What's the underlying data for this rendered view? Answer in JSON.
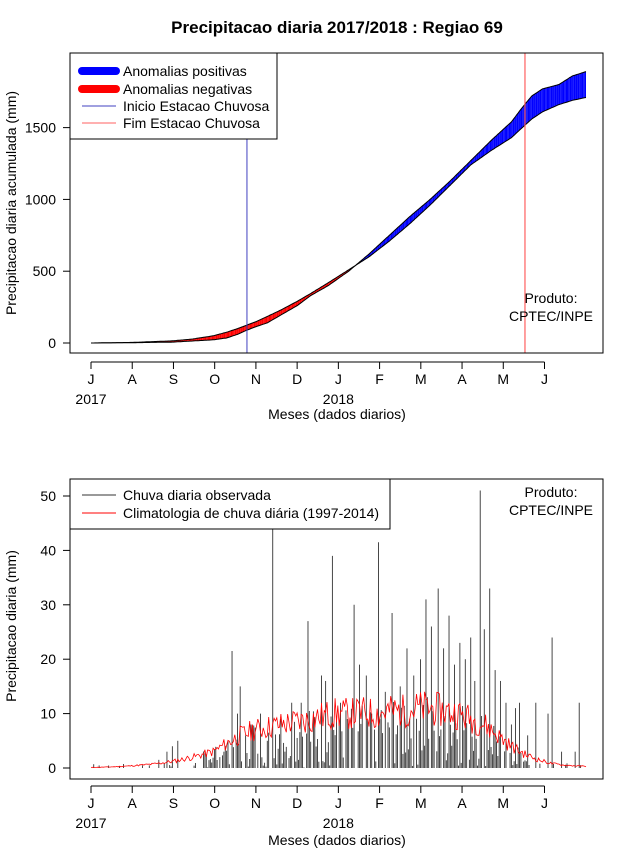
{
  "figure": {
    "title": "Precipitacao diaria 2017/2018 : Regiao 69",
    "colors": {
      "positive": "#0000ff",
      "negative": "#ff0000",
      "start": "#4040c0",
      "end": "#ff6060",
      "observed": "#333333",
      "climatology": "#ff0000"
    }
  },
  "chart_data": [
    {
      "type": "area",
      "title": "Precipitacao diaria 2017/2018 : Regiao 69",
      "xlabel": "Meses (dados diarios)",
      "ylabel": "Precipitacao diaria acumulada (mm)",
      "ylim": [
        0,
        1950
      ],
      "yticks": [
        0,
        500,
        1000,
        1500
      ],
      "x_months": [
        "J",
        "A",
        "S",
        "O",
        "N",
        "D",
        "J",
        "F",
        "M",
        "A",
        "M",
        "J"
      ],
      "x_years": [
        {
          "label": "2017",
          "month_index": 0
        },
        {
          "label": "2018",
          "month_index": 6
        }
      ],
      "day_range": [
        0,
        365
      ],
      "legend": [
        "Anomalias positivas",
        "Anomalias negativas",
        "Inicio Estacao Chuvosa",
        "Fim Estacao Chuvosa"
      ],
      "legend_position": "top-left",
      "note": [
        "Produto:",
        "CPTEC/INPE"
      ],
      "series": [
        {
          "name": "observed_accumulated",
          "points": [
            [
              0,
              0
            ],
            [
              30,
              2
            ],
            [
              60,
              6
            ],
            [
              75,
              14
            ],
            [
              90,
              22
            ],
            [
              100,
              35
            ],
            [
              108,
              60
            ],
            [
              115,
              90
            ],
            [
              122,
              115
            ],
            [
              130,
              140
            ],
            [
              140,
              195
            ],
            [
              152,
              260
            ],
            [
              162,
              330
            ],
            [
              175,
              400
            ],
            [
              190,
              500
            ],
            [
              205,
              620
            ],
            [
              220,
              750
            ],
            [
              235,
              880
            ],
            [
              250,
              1000
            ],
            [
              265,
              1130
            ],
            [
              280,
              1270
            ],
            [
              295,
              1410
            ],
            [
              310,
              1540
            ],
            [
              318,
              1640
            ],
            [
              325,
              1720
            ],
            [
              333,
              1770
            ],
            [
              345,
              1800
            ],
            [
              355,
              1860
            ],
            [
              365,
              1890
            ]
          ]
        },
        {
          "name": "climatology_accumulated",
          "points": [
            [
              0,
              0
            ],
            [
              30,
              4
            ],
            [
              60,
              15
            ],
            [
              75,
              28
            ],
            [
              90,
              50
            ],
            [
              100,
              75
            ],
            [
              108,
              100
            ],
            [
              115,
              125
            ],
            [
              122,
              150
            ],
            [
              130,
              185
            ],
            [
              140,
              230
            ],
            [
              152,
              290
            ],
            [
              162,
              345
            ],
            [
              175,
              420
            ],
            [
              190,
              510
            ],
            [
              205,
              600
            ],
            [
              220,
              710
            ],
            [
              235,
              830
            ],
            [
              250,
              960
            ],
            [
              265,
              1100
            ],
            [
              280,
              1240
            ],
            [
              295,
              1340
            ],
            [
              310,
              1430
            ],
            [
              318,
              1500
            ],
            [
              325,
              1560
            ],
            [
              333,
              1610
            ],
            [
              345,
              1660
            ],
            [
              355,
              1690
            ],
            [
              365,
              1710
            ]
          ]
        }
      ],
      "events": [
        {
          "name": "Inicio Estacao Chuvosa",
          "day": 115
        },
        {
          "name": "Fim Estacao Chuvosa",
          "day": 320
        }
      ]
    },
    {
      "type": "bar",
      "xlabel": "Meses (dados diarios)",
      "ylabel": "Precipitacao diaria (mm)",
      "ylim": [
        0,
        53
      ],
      "yticks": [
        0,
        10,
        20,
        30,
        40,
        50
      ],
      "x_months": [
        "J",
        "A",
        "S",
        "O",
        "N",
        "D",
        "J",
        "F",
        "M",
        "A",
        "M",
        "J"
      ],
      "x_years": [
        {
          "label": "2017",
          "month_index": 0
        },
        {
          "label": "2018",
          "month_index": 6
        }
      ],
      "legend": [
        "Chuva diaria observada",
        "Climatologia de chuva diária (1997-2014)"
      ],
      "legend_position": "top-left",
      "note": [
        "Produto:",
        "CPTEC/INPE"
      ],
      "daily_observed_highlights": [
        {
          "day": 38,
          "value": 0.5
        },
        {
          "day": 50,
          "value": 1.5
        },
        {
          "day": 56,
          "value": 3
        },
        {
          "day": 60,
          "value": 4
        },
        {
          "day": 64,
          "value": 5
        },
        {
          "day": 95,
          "value": 2
        },
        {
          "day": 98,
          "value": 3
        },
        {
          "day": 101,
          "value": 5
        },
        {
          "day": 104,
          "value": 21.5
        },
        {
          "day": 108,
          "value": 10
        },
        {
          "day": 110,
          "value": 15
        },
        {
          "day": 114,
          "value": 6
        },
        {
          "day": 118,
          "value": 8
        },
        {
          "day": 125,
          "value": 10
        },
        {
          "day": 130,
          "value": 5
        },
        {
          "day": 134,
          "value": 44
        },
        {
          "day": 140,
          "value": 9
        },
        {
          "day": 148,
          "value": 12
        },
        {
          "day": 155,
          "value": 12
        },
        {
          "day": 160,
          "value": 27
        },
        {
          "day": 170,
          "value": 17
        },
        {
          "day": 173,
          "value": 16
        },
        {
          "day": 178,
          "value": 39
        },
        {
          "day": 184,
          "value": 12
        },
        {
          "day": 189,
          "value": 9
        },
        {
          "day": 194,
          "value": 30
        },
        {
          "day": 198,
          "value": 19
        },
        {
          "day": 203,
          "value": 17
        },
        {
          "day": 207,
          "value": 10
        },
        {
          "day": 212,
          "value": 41.5
        },
        {
          "day": 217,
          "value": 14
        },
        {
          "day": 222,
          "value": 28.5
        },
        {
          "day": 228,
          "value": 15
        },
        {
          "day": 233,
          "value": 22
        },
        {
          "day": 238,
          "value": 17
        },
        {
          "day": 243,
          "value": 20
        },
        {
          "day": 247,
          "value": 31
        },
        {
          "day": 251,
          "value": 26
        },
        {
          "day": 256,
          "value": 33
        },
        {
          "day": 260,
          "value": 22
        },
        {
          "day": 264,
          "value": 28
        },
        {
          "day": 268,
          "value": 19
        },
        {
          "day": 272,
          "value": 23
        },
        {
          "day": 276,
          "value": 20
        },
        {
          "day": 280,
          "value": 24
        },
        {
          "day": 283,
          "value": 16
        },
        {
          "day": 287,
          "value": 51
        },
        {
          "day": 290,
          "value": 25.5
        },
        {
          "day": 294,
          "value": 33
        },
        {
          "day": 298,
          "value": 18
        },
        {
          "day": 302,
          "value": 16
        },
        {
          "day": 306,
          "value": 12
        },
        {
          "day": 310,
          "value": 8
        },
        {
          "day": 313,
          "value": 11
        },
        {
          "day": 316,
          "value": 12
        },
        {
          "day": 322,
          "value": 6
        },
        {
          "day": 328,
          "value": 12
        },
        {
          "day": 337,
          "value": 10
        },
        {
          "day": 340,
          "value": 24
        },
        {
          "day": 347,
          "value": 3
        },
        {
          "day": 357,
          "value": 3
        },
        {
          "day": 360,
          "value": 12
        }
      ],
      "climatology_profile": [
        [
          0,
          0.1
        ],
        [
          15,
          0.2
        ],
        [
          30,
          0.4
        ],
        [
          45,
          0.7
        ],
        [
          60,
          1.2
        ],
        [
          75,
          2
        ],
        [
          90,
          3
        ],
        [
          100,
          4.5
        ],
        [
          110,
          6
        ],
        [
          120,
          7
        ],
        [
          130,
          7.5
        ],
        [
          140,
          8
        ],
        [
          150,
          8.5
        ],
        [
          160,
          8.8
        ],
        [
          170,
          9.5
        ],
        [
          180,
          10
        ],
        [
          190,
          10
        ],
        [
          200,
          10.2
        ],
        [
          210,
          10
        ],
        [
          220,
          10.5
        ],
        [
          230,
          10.5
        ],
        [
          240,
          11
        ],
        [
          250,
          11
        ],
        [
          260,
          10.5
        ],
        [
          270,
          10
        ],
        [
          280,
          9
        ],
        [
          290,
          8
        ],
        [
          300,
          6
        ],
        [
          310,
          4
        ],
        [
          320,
          2.5
        ],
        [
          330,
          1.5
        ],
        [
          340,
          0.8
        ],
        [
          350,
          0.5
        ],
        [
          365,
          0.3
        ]
      ]
    }
  ]
}
